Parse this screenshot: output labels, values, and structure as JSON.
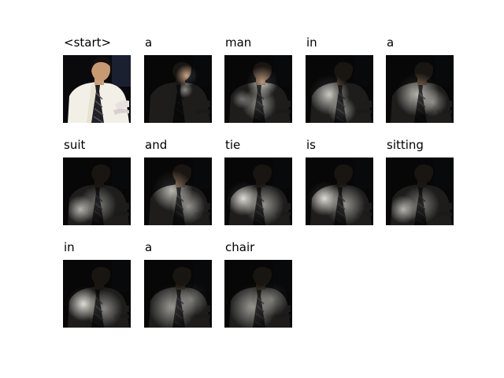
{
  "figure": {
    "tokens": [
      {
        "word": "<start>",
        "attention": "none"
      },
      {
        "word": "a",
        "attention": "head"
      },
      {
        "word": "man",
        "attention": "head-torso"
      },
      {
        "word": "in",
        "attention": "torso-left"
      },
      {
        "word": "a",
        "attention": "torso"
      },
      {
        "word": "suit",
        "attention": "lower-left"
      },
      {
        "word": "and",
        "attention": "upper-body"
      },
      {
        "word": "tie",
        "attention": "left-wide"
      },
      {
        "word": "is",
        "attention": "left-wide"
      },
      {
        "word": "sitting",
        "attention": "lower-left"
      },
      {
        "word": "in",
        "attention": "left-body"
      },
      {
        "word": "a",
        "attention": "diffuse"
      },
      {
        "word": "chair",
        "attention": "diffuse"
      }
    ]
  }
}
